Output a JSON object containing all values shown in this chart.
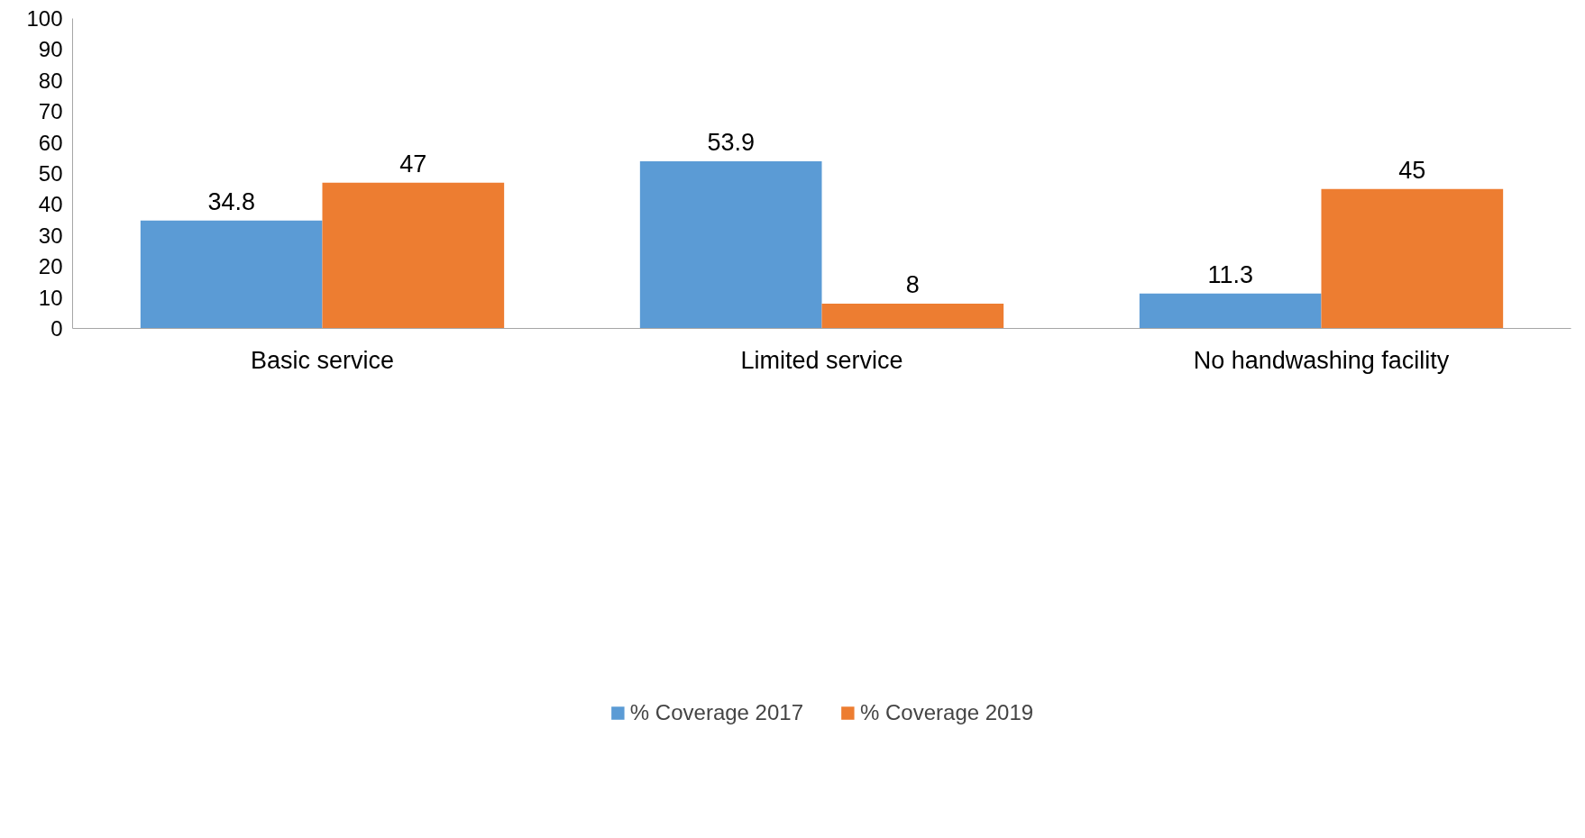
{
  "chart_data": {
    "type": "bar",
    "categories": [
      "Basic service",
      "Limited service",
      "No handwashing facility"
    ],
    "series": [
      {
        "name": "% Coverage 2017",
        "color": "#5b9bd5",
        "values": [
          34.8,
          53.9,
          11.3
        ]
      },
      {
        "name": "% Coverage 2019",
        "color": "#ed7d31",
        "values": [
          47,
          8,
          45
        ]
      }
    ],
    "ylim": [
      0,
      100
    ],
    "yticks": [
      0,
      10,
      20,
      30,
      40,
      50,
      60,
      70,
      80,
      90,
      100
    ],
    "grid": false,
    "legend": "bottom",
    "data_labels": true
  }
}
